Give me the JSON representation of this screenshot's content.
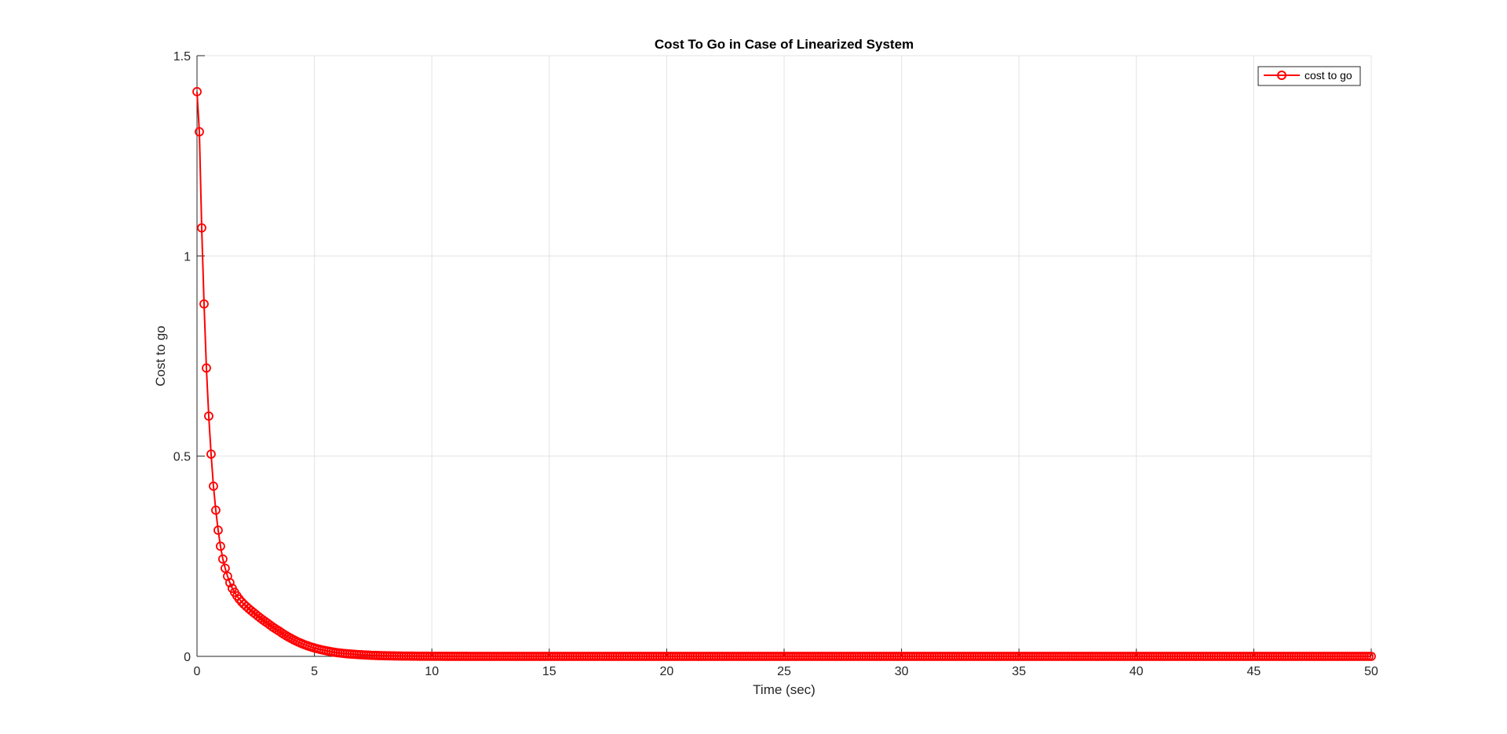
{
  "chart_data": {
    "type": "line",
    "title": "Cost To Go in Case of Linearized System",
    "xlabel": "Time (sec)",
    "ylabel": "Cost to go",
    "xlim": [
      0,
      50
    ],
    "ylim": [
      0,
      1.5
    ],
    "xticks": [
      0,
      5,
      10,
      15,
      20,
      25,
      30,
      35,
      40,
      45,
      50
    ],
    "xtick_labels": [
      "0",
      "5",
      "10",
      "15",
      "20",
      "25",
      "30",
      "35",
      "40",
      "45",
      "50"
    ],
    "yticks": [
      0,
      0.5,
      1,
      1.5
    ],
    "ytick_labels": [
      "0",
      "0.5",
      "1",
      "1.5"
    ],
    "grid": true,
    "legend_position": "top-right",
    "marker": "circle",
    "sample_step": 0.1,
    "series": [
      {
        "name": "cost to go",
        "color": "#ff0000",
        "x": [
          0,
          0.1,
          0.2,
          0.3,
          0.4,
          0.5,
          0.6,
          0.7,
          0.8,
          0.9,
          1.0,
          1.1,
          1.2,
          1.3,
          1.4,
          1.5,
          1.6,
          1.7,
          1.8,
          1.9,
          2.0,
          2.5,
          3.0,
          3.5,
          4.0,
          4.5,
          5.0,
          5.5,
          6.0,
          6.5,
          7.0,
          7.5,
          8.0,
          8.5,
          9.0,
          9.5,
          10.0,
          11.0,
          12.0,
          15.0,
          20.0,
          30.0,
          40.0,
          50.0
        ],
        "y": [
          1.41,
          1.31,
          1.07,
          0.88,
          0.72,
          0.6,
          0.505,
          0.425,
          0.365,
          0.315,
          0.275,
          0.243,
          0.22,
          0.2,
          0.184,
          0.17,
          0.16,
          0.151,
          0.143,
          0.136,
          0.13,
          0.105,
          0.083,
          0.063,
          0.045,
          0.031,
          0.021,
          0.014,
          0.009,
          0.006,
          0.004,
          0.0025,
          0.0016,
          0.001,
          0.0007,
          0.0004,
          0.0003,
          0.0001,
          5e-05,
          0,
          0,
          0,
          0,
          0
        ]
      }
    ]
  }
}
